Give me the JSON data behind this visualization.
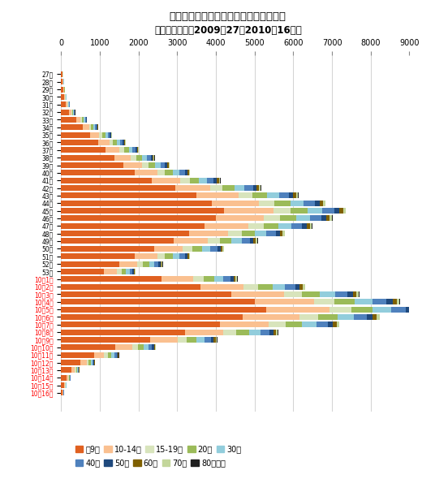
{
  "title_line1": "東京都におけるインフルエンザの報告数",
  "title_line2": "（年齢階層別、2009年27〜2010年16週）",
  "xlim": [
    0,
    9000
  ],
  "xticks": [
    0,
    1000,
    2000,
    3000,
    4000,
    5000,
    6000,
    7000,
    8000,
    9000
  ],
  "categories": [
    "27週",
    "28週",
    "29週",
    "30週",
    "31週",
    "32週",
    "33週",
    "34週",
    "35週",
    "36週",
    "37週",
    "38週",
    "39週",
    "40週",
    "41週",
    "42週",
    "43週",
    "44週",
    "45週",
    "46週",
    "47週",
    "48週",
    "49週",
    "50週",
    "51週",
    "52週",
    "53週",
    "10年1週",
    "10年2週",
    "10年3週",
    "10年4週",
    "10年5週",
    "10年6週",
    "10年7週",
    "10年8週",
    "10年9週",
    "10年10週",
    "10年11週",
    "10年12週",
    "10年13週",
    "10年14週",
    "10年15週",
    "10年16週"
  ],
  "age_groups": [
    "〜9歳",
    "10-14歳",
    "15-19歳",
    "20代",
    "30代",
    "40代",
    "50代",
    "60代",
    "70代",
    "80歳以上"
  ],
  "colors": [
    "#E06020",
    "#FAC090",
    "#D8E4BC",
    "#9BBB59",
    "#92CDDC",
    "#4F81BD",
    "#1F497D",
    "#7F6000",
    "#C3D69B",
    "#1F1F1F"
  ],
  "n_2009_weeks": 27,
  "background_color": "#FFFFFF",
  "bar_height": 0.75,
  "week_data": [
    [
      30,
      10,
      5,
      5,
      4,
      3,
      1,
      1,
      1,
      0
    ],
    [
      40,
      12,
      6,
      6,
      5,
      4,
      2,
      1,
      1,
      0
    ],
    [
      55,
      18,
      8,
      8,
      7,
      5,
      2,
      2,
      1,
      0
    ],
    [
      75,
      25,
      10,
      10,
      9,
      7,
      3,
      2,
      2,
      0
    ],
    [
      120,
      40,
      15,
      15,
      13,
      10,
      5,
      3,
      2,
      1
    ],
    [
      200,
      65,
      22,
      22,
      19,
      15,
      7,
      5,
      3,
      1
    ],
    [
      380,
      120,
      40,
      40,
      34,
      27,
      13,
      8,
      5,
      1
    ],
    [
      550,
      170,
      57,
      57,
      49,
      39,
      18,
      12,
      7,
      2
    ],
    [
      750,
      232,
      78,
      78,
      67,
      53,
      25,
      16,
      10,
      2
    ],
    [
      950,
      293,
      100,
      100,
      85,
      68,
      32,
      21,
      13,
      3
    ],
    [
      1150,
      355,
      120,
      120,
      103,
      82,
      39,
      25,
      16,
      3
    ],
    [
      1380,
      426,
      144,
      144,
      123,
      98,
      47,
      30,
      19,
      4
    ],
    [
      1600,
      494,
      167,
      167,
      143,
      114,
      54,
      35,
      22,
      5
    ],
    [
      1900,
      587,
      199,
      199,
      170,
      136,
      65,
      42,
      26,
      6
    ],
    [
      2350,
      726,
      246,
      246,
      210,
      168,
      80,
      52,
      33,
      7
    ],
    [
      2950,
      911,
      309,
      309,
      264,
      211,
      100,
      66,
      41,
      9
    ],
    [
      3500,
      1081,
      367,
      367,
      314,
      251,
      119,
      78,
      49,
      11
    ],
    [
      3900,
      1205,
      409,
      409,
      350,
      280,
      133,
      87,
      55,
      12
    ],
    [
      4200,
      1297,
      440,
      440,
      376,
      301,
      143,
      93,
      59,
      13
    ],
    [
      4000,
      1235,
      419,
      419,
      358,
      286,
      136,
      89,
      56,
      12
    ],
    [
      3700,
      1143,
      388,
      388,
      331,
      265,
      126,
      82,
      52,
      11
    ],
    [
      3300,
      1019,
      346,
      346,
      296,
      236,
      112,
      73,
      46,
      10
    ],
    [
      2900,
      896,
      304,
      304,
      260,
      208,
      99,
      64,
      41,
      9
    ],
    [
      2400,
      741,
      252,
      252,
      215,
      172,
      82,
      53,
      34,
      7
    ],
    [
      1900,
      587,
      199,
      199,
      170,
      136,
      65,
      42,
      26,
      6
    ],
    [
      1500,
      463,
      157,
      157,
      134,
      107,
      51,
      33,
      21,
      5
    ],
    [
      1100,
      340,
      115,
      115,
      99,
      79,
      37,
      24,
      15,
      3
    ],
    [
      2600,
      803,
      272,
      272,
      233,
      186,
      88,
      58,
      36,
      8
    ],
    [
      3600,
      1112,
      377,
      377,
      323,
      258,
      122,
      80,
      51,
      11
    ],
    [
      4400,
      1359,
      461,
      461,
      394,
      315,
      150,
      98,
      62,
      13
    ],
    [
      5000,
      1544,
      524,
      524,
      448,
      358,
      170,
      111,
      70,
      15
    ],
    [
      5300,
      1637,
      556,
      556,
      475,
      380,
      181,
      118,
      75,
      16
    ],
    [
      4700,
      1452,
      493,
      493,
      422,
      337,
      160,
      105,
      66,
      14
    ],
    [
      4100,
      1267,
      430,
      430,
      368,
      294,
      140,
      91,
      58,
      12
    ],
    [
      3200,
      988,
      336,
      336,
      287,
      229,
      109,
      71,
      45,
      10
    ],
    [
      2300,
      711,
      241,
      241,
      206,
      165,
      78,
      51,
      32,
      7
    ],
    [
      1400,
      432,
      147,
      147,
      125,
      100,
      48,
      31,
      20,
      4
    ],
    [
      850,
      263,
      89,
      89,
      77,
      61,
      29,
      19,
      12,
      3
    ],
    [
      500,
      154,
      52,
      52,
      45,
      36,
      17,
      11,
      7,
      2
    ],
    [
      270,
      83,
      28,
      28,
      24,
      19,
      9,
      6,
      4,
      1
    ],
    [
      140,
      43,
      15,
      15,
      13,
      10,
      5,
      3,
      2,
      0
    ],
    [
      80,
      25,
      8,
      8,
      7,
      6,
      3,
      2,
      1,
      0
    ],
    [
      40,
      12,
      4,
      4,
      4,
      3,
      1,
      1,
      0,
      0
    ]
  ]
}
